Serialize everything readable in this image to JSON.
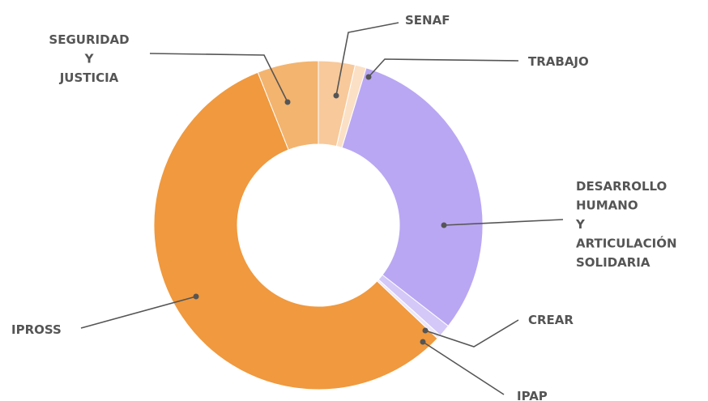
{
  "chart_data": {
    "type": "donut",
    "categories": [
      "SENAF",
      "TRABAJO",
      "DESARROLLO HUMANO Y ARTICULACIÓN SOLIDARIA",
      "CREAR",
      "IPAP",
      "IPROSS",
      "SEGURIDAD Y JUSTICIA"
    ],
    "values": [
      3.6,
      1.1,
      30.8,
      1.2,
      0.4,
      56.9,
      6
    ],
    "colors": [
      "#f7c99b",
      "#fbe0c6",
      "#b9a7f3",
      "#d3c8f7",
      "#ece7fb",
      "#f0993e",
      "#f3b46f"
    ]
  }
}
